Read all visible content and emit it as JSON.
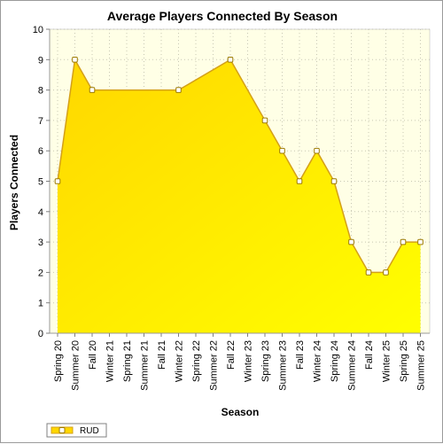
{
  "chart_data": {
    "type": "area",
    "title": "Average Players Connected By Season",
    "xlabel": "Season",
    "ylabel": "Players Connected",
    "categories": [
      "Spring 20",
      "Summer 20",
      "Fall 20",
      "Winter 21",
      "Spring 21",
      "Summer 21",
      "Fall 21",
      "Winter 22",
      "Spring 22",
      "Summer 22",
      "Fall 22",
      "Winter 23",
      "Spring 23",
      "Summer 23",
      "Fall 23",
      "Winter 24",
      "Spring 24",
      "Summer 24",
      "Fall 24",
      "Winter 25",
      "Spring 25",
      "Summer 25"
    ],
    "series": [
      {
        "name": "RUD",
        "points": [
          {
            "x": "Spring 20",
            "y": 5
          },
          {
            "x": "Summer 20",
            "y": 9
          },
          {
            "x": "Fall 20",
            "y": 8
          },
          {
            "x": "Winter 22",
            "y": 8
          },
          {
            "x": "Fall 22",
            "y": 9
          },
          {
            "x": "Spring 23",
            "y": 7
          },
          {
            "x": "Summer 23",
            "y": 6
          },
          {
            "x": "Fall 23",
            "y": 5
          },
          {
            "x": "Winter 24",
            "y": 6
          },
          {
            "x": "Spring 24",
            "y": 5
          },
          {
            "x": "Summer 24",
            "y": 3
          },
          {
            "x": "Fall 24",
            "y": 2
          },
          {
            "x": "Winter 25",
            "y": 2
          },
          {
            "x": "Spring 25",
            "y": 3
          },
          {
            "x": "Summer 25",
            "y": 3
          }
        ]
      }
    ],
    "ylim": [
      0,
      10
    ],
    "yticks": [
      0,
      1,
      2,
      3,
      4,
      5,
      6,
      7,
      8,
      9,
      10
    ],
    "grid": true,
    "legend": "bottom-left",
    "colors": {
      "plot_background": "#FFFFE6",
      "area_top": "#FFD700",
      "area_bottom": "#FFFF00",
      "line": "#D4A017",
      "marker_fill": "#FFFFFF",
      "marker_stroke": "#9C7A00",
      "grid": "#C8C8B4"
    }
  }
}
